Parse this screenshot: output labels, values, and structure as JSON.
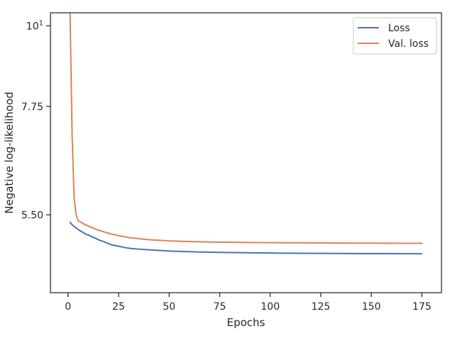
{
  "chart_data": {
    "type": "line",
    "title": "",
    "xlabel": "Epochs",
    "ylabel": "Negative log-likelihood",
    "xlim": [
      -8.7,
      184.7
    ],
    "ylim": [
      4.3,
      10.42
    ],
    "yscale": "log",
    "grid": false,
    "legend_position": "top-right",
    "x_ticks": [
      0,
      25,
      50,
      75,
      100,
      125,
      150,
      175
    ],
    "x_tick_labels": [
      "0",
      "25",
      "50",
      "75",
      "100",
      "125",
      "150",
      "175"
    ],
    "y_ticks": [
      5.5,
      7.75,
      10
    ],
    "y_tick_labels": [
      "5.50",
      "7.75",
      "10"
    ],
    "y_tick_superscripts": [
      "",
      "",
      "1"
    ],
    "series": [
      {
        "name": "Loss",
        "color": "#4c72b0",
        "x": [
          1,
          2,
          3,
          4,
          5,
          6,
          7,
          8,
          9,
          10,
          12,
          14,
          16,
          18,
          20,
          22,
          25,
          28,
          31,
          35,
          40,
          45,
          50,
          55,
          60,
          65,
          70,
          75,
          80,
          85,
          90,
          95,
          100,
          105,
          110,
          115,
          120,
          125,
          130,
          135,
          140,
          145,
          150,
          155,
          160,
          165,
          170,
          175
        ],
        "y": [
          5.37,
          5.33,
          5.3,
          5.28,
          5.25,
          5.23,
          5.21,
          5.19,
          5.17,
          5.16,
          5.13,
          5.1,
          5.07,
          5.05,
          5.02,
          5.0,
          4.98,
          4.96,
          4.945,
          4.935,
          4.925,
          4.915,
          4.905,
          4.9,
          4.895,
          4.89,
          4.888,
          4.885,
          4.882,
          4.88,
          4.878,
          4.876,
          4.875,
          4.873,
          4.872,
          4.871,
          4.87,
          4.869,
          4.868,
          4.868,
          4.867,
          4.866,
          4.866,
          4.865,
          4.865,
          4.864,
          4.864,
          4.863
        ]
      },
      {
        "name": "Val. loss",
        "color": "#dd8452",
        "x": [
          1,
          2,
          3,
          4,
          5,
          6,
          7,
          8,
          10,
          12,
          15,
          18,
          21,
          25,
          30,
          35,
          40,
          45,
          50,
          60,
          70,
          80,
          90,
          100,
          110,
          120,
          130,
          140,
          150,
          160,
          170,
          175
        ],
        "y": [
          10.4,
          7.1,
          5.8,
          5.5,
          5.4,
          5.38,
          5.36,
          5.34,
          5.31,
          5.28,
          5.24,
          5.21,
          5.18,
          5.15,
          5.12,
          5.1,
          5.085,
          5.075,
          5.065,
          5.055,
          5.047,
          5.043,
          5.04,
          5.037,
          5.035,
          5.033,
          5.031,
          5.03,
          5.029,
          5.028,
          5.027,
          5.027
        ]
      }
    ]
  }
}
